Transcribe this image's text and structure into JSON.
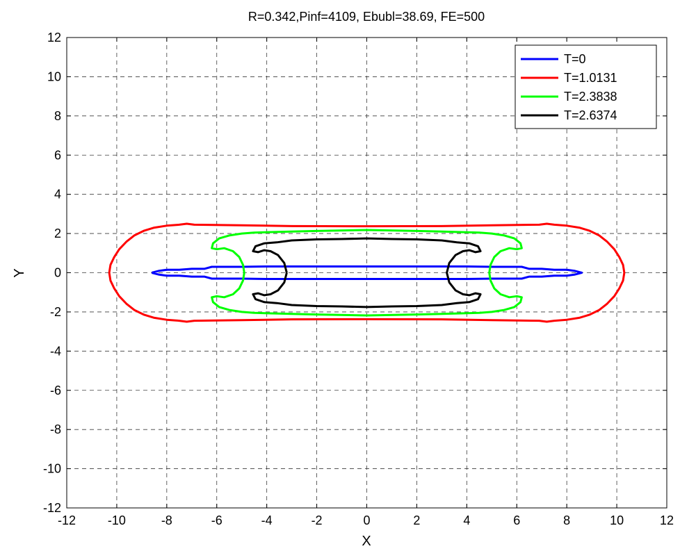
{
  "chart_data": {
    "type": "line",
    "title": "R=0.342,Pinf=4109, Ebubl=38.69, FE=500",
    "xlabel": "X",
    "ylabel": "Y",
    "xlim": [
      -12,
      12
    ],
    "ylim": [
      -12,
      12
    ],
    "xticks": [
      -12,
      -10,
      -8,
      -6,
      -4,
      -2,
      0,
      2,
      4,
      6,
      8,
      10,
      12
    ],
    "yticks": [
      -12,
      -10,
      -8,
      -6,
      -4,
      -2,
      0,
      2,
      4,
      6,
      8,
      10,
      12
    ],
    "grid": true,
    "legend_position": "top-right",
    "series": [
      {
        "name": "T=0",
        "color": "#0000ff",
        "points": [
          [
            -8.6,
            0.0
          ],
          [
            -8.3,
            0.1
          ],
          [
            -8.0,
            0.15
          ],
          [
            -7.5,
            0.15
          ],
          [
            -7.0,
            0.2
          ],
          [
            -6.5,
            0.2
          ],
          [
            -6.2,
            0.3
          ],
          [
            -5.0,
            0.3
          ],
          [
            -4.0,
            0.32
          ],
          [
            0.0,
            0.32
          ],
          [
            4.0,
            0.32
          ],
          [
            5.0,
            0.3
          ],
          [
            6.2,
            0.3
          ],
          [
            6.5,
            0.2
          ],
          [
            7.0,
            0.2
          ],
          [
            7.5,
            0.15
          ],
          [
            8.0,
            0.15
          ],
          [
            8.3,
            0.1
          ],
          [
            8.6,
            0.0
          ],
          [
            8.3,
            -0.1
          ],
          [
            8.0,
            -0.15
          ],
          [
            7.5,
            -0.15
          ],
          [
            7.0,
            -0.2
          ],
          [
            6.5,
            -0.2
          ],
          [
            6.2,
            -0.3
          ],
          [
            5.0,
            -0.3
          ],
          [
            4.0,
            -0.32
          ],
          [
            0.0,
            -0.32
          ],
          [
            -4.0,
            -0.32
          ],
          [
            -5.0,
            -0.3
          ],
          [
            -6.2,
            -0.3
          ],
          [
            -6.5,
            -0.2
          ],
          [
            -7.0,
            -0.2
          ],
          [
            -7.5,
            -0.15
          ],
          [
            -8.0,
            -0.15
          ],
          [
            -8.3,
            -0.1
          ],
          [
            -8.6,
            0.0
          ]
        ]
      },
      {
        "name": "T=1.0131",
        "color": "#ff0000",
        "points": [
          [
            -10.3,
            0.0
          ],
          [
            -10.25,
            0.4
          ],
          [
            -10.1,
            0.8
          ],
          [
            -9.9,
            1.2
          ],
          [
            -9.6,
            1.6
          ],
          [
            -9.3,
            1.9
          ],
          [
            -8.9,
            2.15
          ],
          [
            -8.5,
            2.3
          ],
          [
            -8.0,
            2.4
          ],
          [
            -7.5,
            2.45
          ],
          [
            -7.2,
            2.5
          ],
          [
            -6.9,
            2.45
          ],
          [
            -5.0,
            2.42
          ],
          [
            -3.0,
            2.38
          ],
          [
            0.0,
            2.37
          ],
          [
            3.0,
            2.38
          ],
          [
            5.0,
            2.42
          ],
          [
            6.9,
            2.45
          ],
          [
            7.2,
            2.5
          ],
          [
            7.5,
            2.45
          ],
          [
            8.0,
            2.4
          ],
          [
            8.5,
            2.3
          ],
          [
            8.9,
            2.15
          ],
          [
            9.3,
            1.9
          ],
          [
            9.6,
            1.6
          ],
          [
            9.9,
            1.2
          ],
          [
            10.1,
            0.8
          ],
          [
            10.25,
            0.4
          ],
          [
            10.3,
            0.0
          ],
          [
            10.25,
            -0.4
          ],
          [
            10.1,
            -0.8
          ],
          [
            9.9,
            -1.2
          ],
          [
            9.6,
            -1.6
          ],
          [
            9.3,
            -1.9
          ],
          [
            8.9,
            -2.15
          ],
          [
            8.5,
            -2.3
          ],
          [
            8.0,
            -2.4
          ],
          [
            7.5,
            -2.45
          ],
          [
            7.2,
            -2.5
          ],
          [
            6.9,
            -2.45
          ],
          [
            5.0,
            -2.42
          ],
          [
            3.0,
            -2.38
          ],
          [
            0.0,
            -2.37
          ],
          [
            -3.0,
            -2.38
          ],
          [
            -5.0,
            -2.42
          ],
          [
            -6.9,
            -2.45
          ],
          [
            -7.2,
            -2.5
          ],
          [
            -7.5,
            -2.45
          ],
          [
            -8.0,
            -2.4
          ],
          [
            -8.5,
            -2.3
          ],
          [
            -8.9,
            -2.15
          ],
          [
            -9.3,
            -1.9
          ],
          [
            -9.6,
            -1.6
          ],
          [
            -9.9,
            -1.2
          ],
          [
            -10.1,
            -0.8
          ],
          [
            -10.25,
            -0.4
          ],
          [
            -10.3,
            0.0
          ]
        ]
      },
      {
        "name": "T=2.3838",
        "color": "#00ff00",
        "points": [
          [
            -4.9,
            0.0
          ],
          [
            -4.95,
            0.4
          ],
          [
            -5.1,
            0.8
          ],
          [
            -5.35,
            1.1
          ],
          [
            -5.7,
            1.25
          ],
          [
            -6.0,
            1.2
          ],
          [
            -6.2,
            1.25
          ],
          [
            -6.15,
            1.5
          ],
          [
            -5.9,
            1.75
          ],
          [
            -5.5,
            1.9
          ],
          [
            -5.0,
            2.0
          ],
          [
            -4.5,
            2.05
          ],
          [
            -3.0,
            2.1
          ],
          [
            -2.0,
            2.13
          ],
          [
            0.0,
            2.18
          ],
          [
            2.0,
            2.13
          ],
          [
            3.0,
            2.1
          ],
          [
            4.5,
            2.05
          ],
          [
            5.0,
            2.0
          ],
          [
            5.5,
            1.9
          ],
          [
            5.9,
            1.75
          ],
          [
            6.15,
            1.5
          ],
          [
            6.2,
            1.25
          ],
          [
            6.0,
            1.2
          ],
          [
            5.7,
            1.25
          ],
          [
            5.35,
            1.1
          ],
          [
            5.1,
            0.8
          ],
          [
            4.95,
            0.4
          ],
          [
            4.9,
            0.0
          ],
          [
            4.95,
            -0.4
          ],
          [
            5.1,
            -0.8
          ],
          [
            5.35,
            -1.1
          ],
          [
            5.7,
            -1.25
          ],
          [
            6.0,
            -1.2
          ],
          [
            6.2,
            -1.25
          ],
          [
            6.15,
            -1.5
          ],
          [
            5.9,
            -1.75
          ],
          [
            5.5,
            -1.9
          ],
          [
            5.0,
            -2.0
          ],
          [
            4.5,
            -2.05
          ],
          [
            3.0,
            -2.1
          ],
          [
            2.0,
            -2.13
          ],
          [
            0.0,
            -2.18
          ],
          [
            -2.0,
            -2.13
          ],
          [
            -3.0,
            -2.1
          ],
          [
            -4.5,
            -2.05
          ],
          [
            -5.0,
            -2.0
          ],
          [
            -5.5,
            -1.9
          ],
          [
            -5.9,
            -1.75
          ],
          [
            -6.15,
            -1.5
          ],
          [
            -6.2,
            -1.25
          ],
          [
            -6.0,
            -1.2
          ],
          [
            -5.7,
            -1.25
          ],
          [
            -5.35,
            -1.1
          ],
          [
            -5.1,
            -0.8
          ],
          [
            -4.95,
            -0.4
          ],
          [
            -4.9,
            0.0
          ]
        ]
      },
      {
        "name": "T=2.6374",
        "color": "#000000",
        "points": [
          [
            -3.2,
            0.0
          ],
          [
            -3.3,
            0.5
          ],
          [
            -3.55,
            0.9
          ],
          [
            -3.85,
            1.1
          ],
          [
            -4.1,
            1.15
          ],
          [
            -4.35,
            1.05
          ],
          [
            -4.55,
            1.1
          ],
          [
            -4.45,
            1.35
          ],
          [
            -4.1,
            1.5
          ],
          [
            -3.6,
            1.55
          ],
          [
            -3.0,
            1.65
          ],
          [
            -2.0,
            1.7
          ],
          [
            -1.0,
            1.72
          ],
          [
            0.0,
            1.75
          ],
          [
            1.0,
            1.72
          ],
          [
            2.0,
            1.7
          ],
          [
            3.0,
            1.65
          ],
          [
            3.6,
            1.55
          ],
          [
            4.1,
            1.5
          ],
          [
            4.45,
            1.35
          ],
          [
            4.55,
            1.1
          ],
          [
            4.35,
            1.05
          ],
          [
            4.1,
            1.15
          ],
          [
            3.85,
            1.1
          ],
          [
            3.55,
            0.9
          ],
          [
            3.3,
            0.5
          ],
          [
            3.2,
            0.0
          ],
          [
            3.3,
            -0.5
          ],
          [
            3.55,
            -0.9
          ],
          [
            3.85,
            -1.1
          ],
          [
            4.1,
            -1.15
          ],
          [
            4.35,
            -1.05
          ],
          [
            4.55,
            -1.1
          ],
          [
            4.45,
            -1.35
          ],
          [
            4.1,
            -1.5
          ],
          [
            3.6,
            -1.55
          ],
          [
            3.0,
            -1.65
          ],
          [
            2.0,
            -1.7
          ],
          [
            1.0,
            -1.72
          ],
          [
            0.0,
            -1.75
          ],
          [
            -1.0,
            -1.72
          ],
          [
            -2.0,
            -1.7
          ],
          [
            -3.0,
            -1.65
          ],
          [
            -3.6,
            -1.55
          ],
          [
            -4.1,
            -1.5
          ],
          [
            -4.45,
            -1.35
          ],
          [
            -4.55,
            -1.1
          ],
          [
            -4.35,
            -1.05
          ],
          [
            -4.1,
            -1.15
          ],
          [
            -3.85,
            -1.1
          ],
          [
            -3.55,
            -0.9
          ],
          [
            -3.3,
            -0.5
          ],
          [
            -3.2,
            0.0
          ]
        ]
      }
    ]
  }
}
